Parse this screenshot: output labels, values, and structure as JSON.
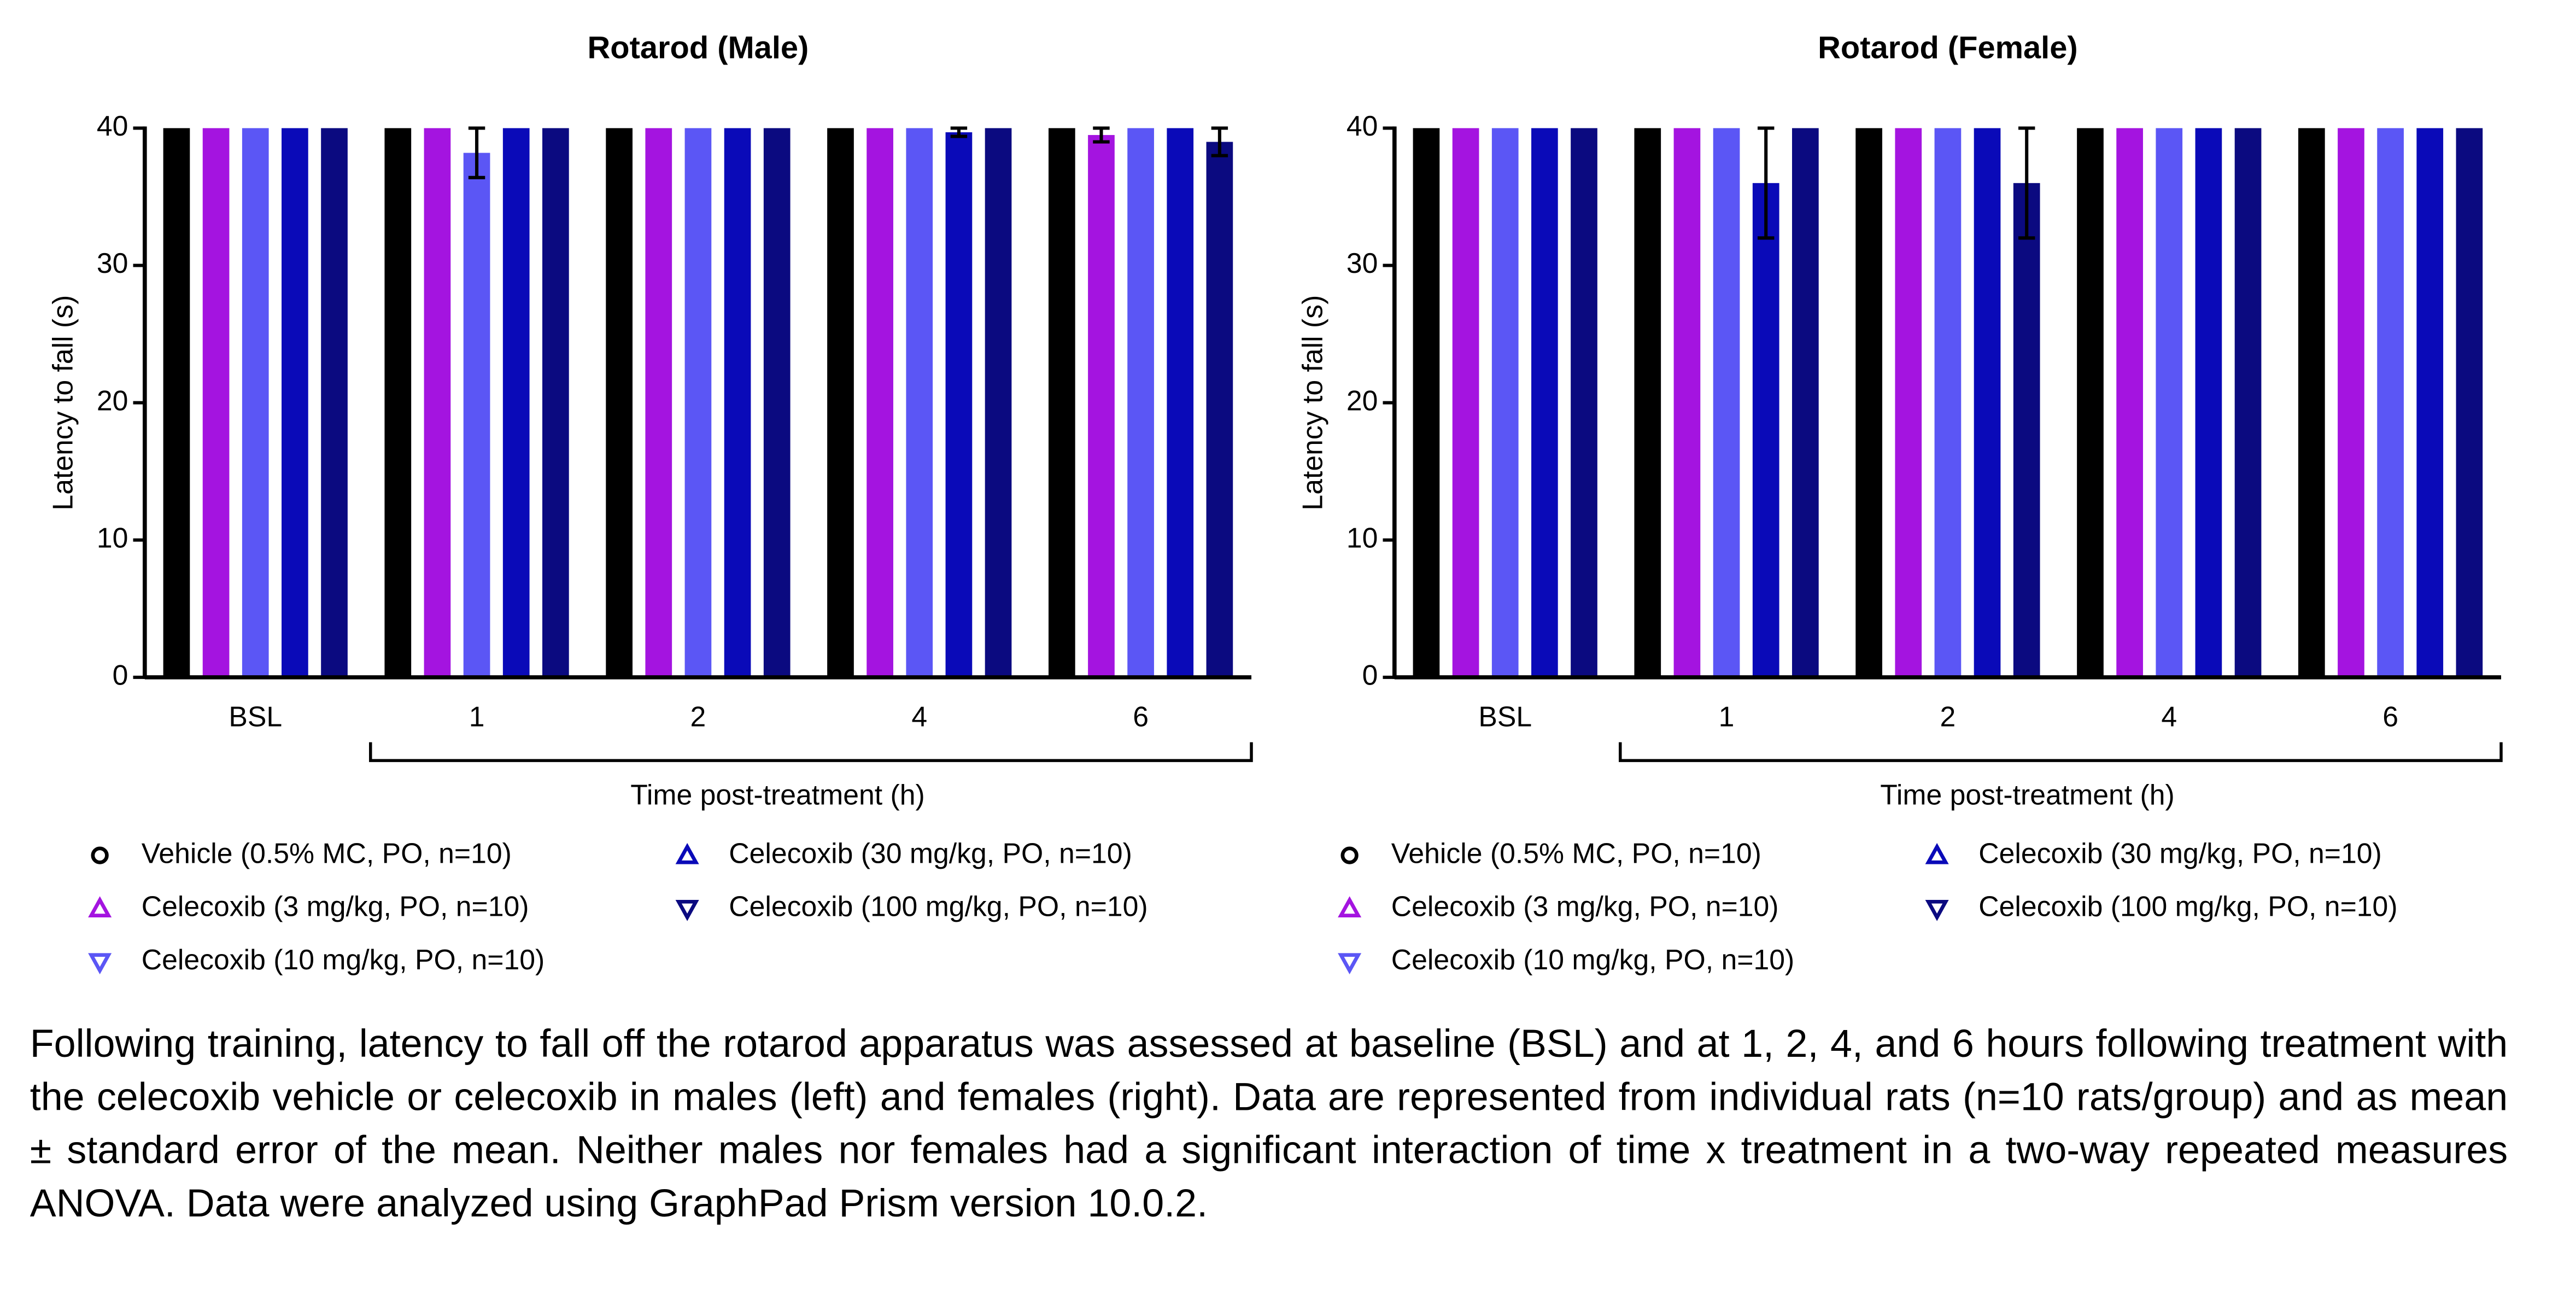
{
  "chart_data": [
    {
      "type": "bar",
      "title": "Rotarod (Male)",
      "y_label": "Latency to fall (s)",
      "x_label": "Time post-treatment (h)",
      "categories": [
        "BSL",
        "1",
        "2",
        "4",
        "6"
      ],
      "ylim": [
        0,
        40
      ],
      "yticks": [
        0,
        10,
        20,
        30,
        40
      ],
      "series": [
        {
          "name": "Vehicle (0.5% MC, PO, n=10)",
          "color": "#000000",
          "marker": "circle",
          "values": [
            40,
            40,
            40,
            40,
            40
          ],
          "errors": [
            0,
            0,
            0,
            0,
            0
          ]
        },
        {
          "name": "Celecoxib (3 mg/kg, PO, n=10)",
          "color": "#a414e0",
          "marker": "triangle-up",
          "values": [
            40,
            40,
            40,
            40,
            39.5
          ],
          "errors": [
            0,
            0,
            0,
            0,
            0.5
          ]
        },
        {
          "name": "Celecoxib (10 mg/kg, PO, n=10)",
          "color": "#5b56f5",
          "marker": "triangle-down",
          "values": [
            40,
            38.2,
            40,
            40,
            40
          ],
          "errors": [
            0,
            1.8,
            0,
            0,
            0
          ]
        },
        {
          "name": "Celecoxib (30 mg/kg, PO, n=10)",
          "color": "#0a0ab8",
          "marker": "triangle-up",
          "values": [
            40,
            40,
            40,
            39.7,
            40
          ],
          "errors": [
            0,
            0,
            0,
            0.3,
            0
          ]
        },
        {
          "name": "Celecoxib (100 mg/kg, PO, n=10)",
          "color": "#0b0a80",
          "marker": "triangle-down",
          "values": [
            40,
            40,
            40,
            40,
            39
          ],
          "errors": [
            0,
            0,
            0,
            0,
            1
          ]
        }
      ]
    },
    {
      "type": "bar",
      "title": "Rotarod (Female)",
      "y_label": "Latency to fall (s)",
      "x_label": "Time post-treatment (h)",
      "categories": [
        "BSL",
        "1",
        "2",
        "4",
        "6"
      ],
      "ylim": [
        0,
        40
      ],
      "yticks": [
        0,
        10,
        20,
        30,
        40
      ],
      "series": [
        {
          "name": "Vehicle (0.5% MC, PO, n=10)",
          "color": "#000000",
          "marker": "circle",
          "values": [
            40,
            40,
            40,
            40,
            40
          ],
          "errors": [
            0,
            0,
            0,
            0,
            0
          ]
        },
        {
          "name": "Celecoxib (3 mg/kg, PO, n=10)",
          "color": "#a414e0",
          "marker": "triangle-up",
          "values": [
            40,
            40,
            40,
            40,
            40
          ],
          "errors": [
            0,
            0,
            0,
            0,
            0
          ]
        },
        {
          "name": "Celecoxib (10 mg/kg, PO, n=10)",
          "color": "#5b56f5",
          "marker": "triangle-down",
          "values": [
            40,
            40,
            40,
            40,
            40
          ],
          "errors": [
            0,
            0,
            0,
            0,
            0
          ]
        },
        {
          "name": "Celecoxib (30 mg/kg, PO, n=10)",
          "color": "#0a0ab8",
          "marker": "triangle-up",
          "values": [
            40,
            36,
            40,
            40,
            40
          ],
          "errors": [
            0,
            4,
            0,
            0,
            0
          ]
        },
        {
          "name": "Celecoxib (100 mg/kg, PO, n=10)",
          "color": "#0b0a80",
          "marker": "triangle-down",
          "values": [
            40,
            40,
            36,
            40,
            40
          ],
          "errors": [
            0,
            0,
            4,
            0,
            0
          ]
        }
      ]
    }
  ],
  "caption": "Following training, latency to fall off the rotarod apparatus was assessed at baseline (BSL) and at 1, 2, 4, and 6 hours following treatment with the celecoxib vehicle or celecoxib in males (left) and females (right). Data are represented from individual rats (n=10 rats/group) and as mean ± standard error of the mean. Neither males nor females had a significant interaction of time x treatment in a two-way repeated measures ANOVA. Data were analyzed using GraphPad Prism version 10.0.2."
}
